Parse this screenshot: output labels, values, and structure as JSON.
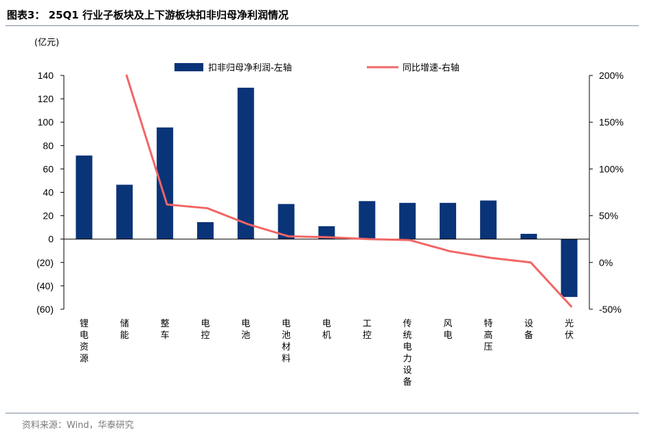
{
  "figure": {
    "title": "图表3：  25Q1 行业子板块及上下游板块扣非归母净利润情况",
    "source": "资料来源：Wind，华泰研究"
  },
  "chart_data": {
    "type": "bar",
    "categories": [
      "锂电资源",
      "储能",
      "整车",
      "电控",
      "电池",
      "电池材料",
      "电机",
      "工控",
      "传统电力设备",
      "风电",
      "特高压",
      "设备",
      "光伏"
    ],
    "series": [
      {
        "name": "扣非归母净利润-左轴",
        "type": "bar",
        "axis": "left",
        "color": "#0a3478",
        "values": [
          71.5,
          46.5,
          95.5,
          14.5,
          129.5,
          30,
          11,
          32.5,
          31,
          31,
          33,
          4.5,
          -49.5
        ]
      },
      {
        "name": "同比增速-右轴",
        "type": "line",
        "axis": "right",
        "color": "#f26565",
        "values": [
          null,
          200,
          62,
          58,
          41,
          28,
          27,
          25,
          24,
          12,
          5,
          0,
          -47
        ]
      }
    ],
    "ylabel_left": "(亿元)",
    "ylim_left": [
      -60,
      140
    ],
    "yticks_left": [
      "140",
      "120",
      "100",
      "80",
      "60",
      "40",
      "20",
      "0",
      "(20)",
      "(40)",
      "(60)"
    ],
    "ylim_right": [
      -50,
      200
    ],
    "yticks_right": [
      "200%",
      "150%",
      "100%",
      "50%",
      "0%",
      "-50%"
    ],
    "grid": false,
    "legend": "top-center"
  }
}
